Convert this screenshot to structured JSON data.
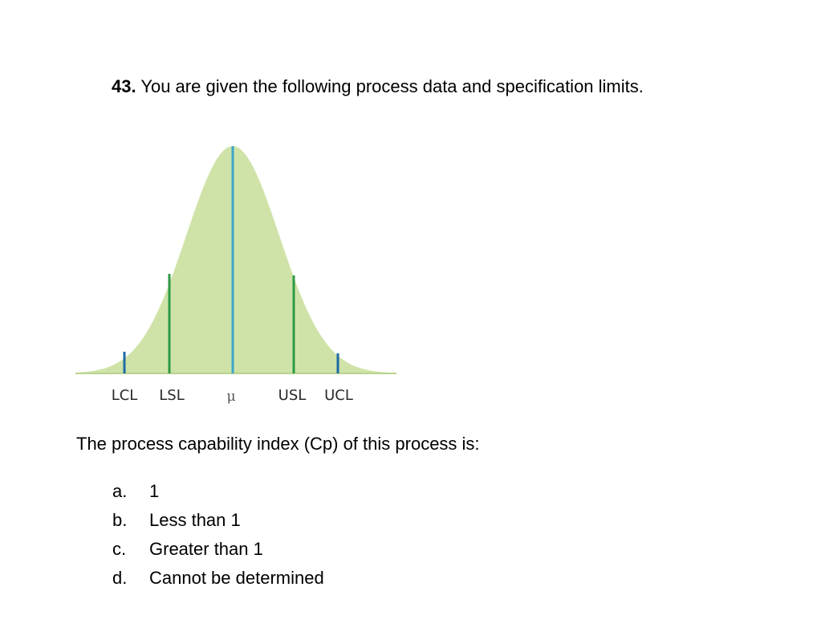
{
  "question": {
    "number": "43.",
    "text": "You are given the following process data and specification limits."
  },
  "figure": {
    "labels": {
      "lcl": "LCL",
      "lsl": "LSL",
      "mu": "μ",
      "usl": "USL",
      "ucl": "UCL"
    },
    "colors": {
      "curve_fill": "#cfe3a8",
      "mean_line": "#3ea6c8",
      "spec_lines": "#2e9a46",
      "control_lines": "#1f6aa5"
    }
  },
  "prompt": "The process capability index (Cp) of this process is:",
  "options": [
    {
      "letter": "a.",
      "text": "1"
    },
    {
      "letter": "b.",
      "text": "Less than 1"
    },
    {
      "letter": "c.",
      "text": "Greater than 1"
    },
    {
      "letter": "d.",
      "text": "Cannot be determined"
    }
  ]
}
